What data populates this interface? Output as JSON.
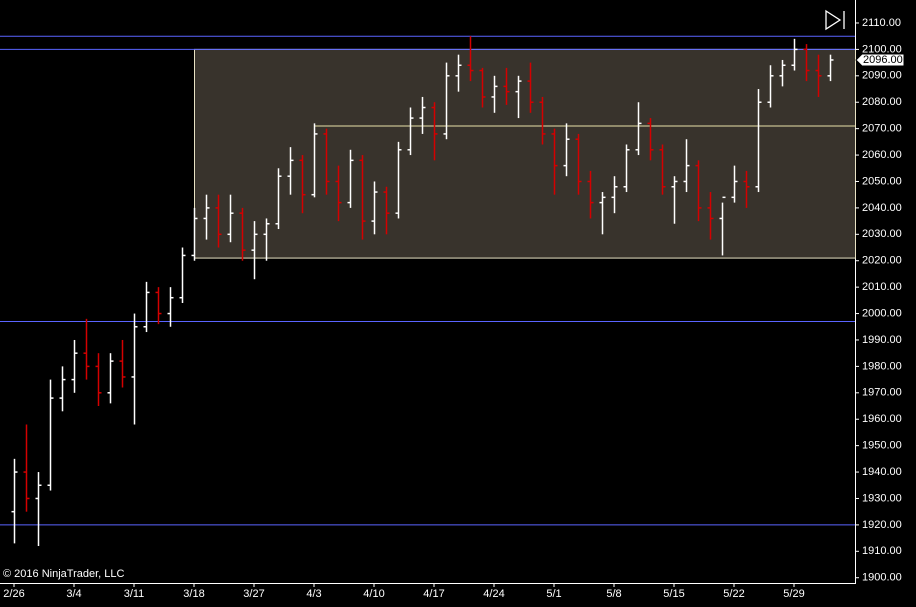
{
  "chart_data": {
    "type": "ohlc",
    "copyright": "© 2016 NinjaTrader, LLC",
    "categories": [
      "2/26",
      null,
      null,
      null,
      null,
      "3/4",
      null,
      null,
      null,
      null,
      "3/11",
      null,
      null,
      null,
      null,
      "3/18",
      null,
      null,
      null,
      null,
      "3/27",
      null,
      null,
      null,
      null,
      "4/3",
      null,
      null,
      null,
      null,
      "4/10",
      null,
      null,
      null,
      null,
      "4/17",
      null,
      null,
      null,
      null,
      "4/24",
      null,
      null,
      null,
      null,
      "5/1",
      null,
      null,
      null,
      null,
      "5/8",
      null,
      null,
      null,
      null,
      "5/15",
      null,
      null,
      null,
      null,
      "5/22",
      null,
      null,
      null,
      null,
      "5/29",
      null,
      null,
      null
    ],
    "ohlc": [
      [
        1925,
        1945,
        1913,
        1940
      ],
      [
        1940,
        1958,
        1925,
        1930
      ],
      [
        1930,
        1940,
        1912,
        1935
      ],
      [
        1935,
        1975,
        1933,
        1968
      ],
      [
        1968,
        1980,
        1963,
        1975
      ],
      [
        1975,
        1990,
        1970,
        1985
      ],
      [
        1985,
        1998,
        1975,
        1980
      ],
      [
        1980,
        1985,
        1965,
        1970
      ],
      [
        1970,
        1985,
        1966,
        1982
      ],
      [
        1982,
        1990,
        1972,
        1976
      ],
      [
        1976,
        2000,
        1958,
        1995
      ],
      [
        1995,
        2012,
        1993,
        2008
      ],
      [
        2008,
        2010,
        1996,
        2000
      ],
      [
        2000,
        2010,
        1995,
        2006
      ],
      [
        2006,
        2025,
        2004,
        2022
      ],
      [
        2022,
        2040,
        2020,
        2036
      ],
      [
        2036,
        2045,
        2028,
        2040
      ],
      [
        2040,
        2045,
        2025,
        2030
      ],
      [
        2030,
        2045,
        2027,
        2038
      ],
      [
        2038,
        2040,
        2020,
        2024
      ],
      [
        2024,
        2035,
        2013,
        2030
      ],
      [
        2030,
        2036,
        2020,
        2034
      ],
      [
        2034,
        2055,
        2032,
        2052
      ],
      [
        2052,
        2063,
        2045,
        2058
      ],
      [
        2058,
        2060,
        2038,
        2045
      ],
      [
        2045,
        2072,
        2044,
        2068
      ],
      [
        2068,
        2070,
        2045,
        2050
      ],
      [
        2050,
        2056,
        2035,
        2042
      ],
      [
        2042,
        2062,
        2040,
        2058
      ],
      [
        2058,
        2060,
        2028,
        2035
      ],
      [
        2035,
        2050,
        2030,
        2046
      ],
      [
        2046,
        2048,
        2030,
        2038
      ],
      [
        2038,
        2065,
        2036,
        2062
      ],
      [
        2062,
        2078,
        2060,
        2074
      ],
      [
        2074,
        2082,
        2068,
        2078
      ],
      [
        2078,
        2080,
        2058,
        2068
      ],
      [
        2068,
        2095,
        2066,
        2090
      ],
      [
        2090,
        2098,
        2084,
        2094
      ],
      [
        2094,
        2105,
        2088,
        2092
      ],
      [
        2092,
        2093,
        2078,
        2082
      ],
      [
        2082,
        2090,
        2076,
        2086
      ],
      [
        2086,
        2093,
        2079,
        2084
      ],
      [
        2084,
        2090,
        2074,
        2088
      ],
      [
        2088,
        2095,
        2076,
        2080
      ],
      [
        2080,
        2082,
        2064,
        2068
      ],
      [
        2068,
        2070,
        2045,
        2056
      ],
      [
        2056,
        2072,
        2052,
        2066
      ],
      [
        2066,
        2068,
        2045,
        2050
      ],
      [
        2050,
        2054,
        2036,
        2042
      ],
      [
        2042,
        2046,
        2030,
        2044
      ],
      [
        2044,
        2052,
        2038,
        2048
      ],
      [
        2048,
        2064,
        2046,
        2062
      ],
      [
        2062,
        2080,
        2060,
        2072
      ],
      [
        2072,
        2074,
        2058,
        2062
      ],
      [
        2062,
        2064,
        2045,
        2048
      ],
      [
        2048,
        2052,
        2034,
        2050
      ],
      [
        2050,
        2066,
        2046,
        2056
      ],
      [
        2056,
        2058,
        2035,
        2040
      ],
      [
        2040,
        2046,
        2028,
        2036
      ],
      [
        2036,
        2042,
        2022,
        2044
      ],
      [
        2044,
        2056,
        2042,
        2050
      ],
      [
        2050,
        2054,
        2040,
        2048
      ],
      [
        2048,
        2085,
        2046,
        2080
      ],
      [
        2080,
        2094,
        2078,
        2090
      ],
      [
        2090,
        2096,
        2086,
        2094
      ],
      [
        2094,
        2104,
        2092,
        2100
      ],
      [
        2100,
        2102,
        2088,
        2092
      ],
      [
        2092,
        2098,
        2082,
        2090
      ],
      [
        2090,
        2098,
        2088,
        2096
      ]
    ],
    "up_color": "#ffffff",
    "down_color": "#d40000",
    "ylim": [
      1898,
      2118.7
    ],
    "yticks": [
      {
        "value": 1900,
        "label": "1900.00"
      },
      {
        "value": 1910,
        "label": "1910.00"
      },
      {
        "value": 1920,
        "label": "1920.00"
      },
      {
        "value": 1930,
        "label": "1930.00"
      },
      {
        "value": 1940,
        "label": "1940.00"
      },
      {
        "value": 1950,
        "label": "1950.00"
      },
      {
        "value": 1960,
        "label": "1960.00"
      },
      {
        "value": 1970,
        "label": "1970.00"
      },
      {
        "value": 1980,
        "label": "1980.00"
      },
      {
        "value": 1990,
        "label": "1990.00"
      },
      {
        "value": 2000,
        "label": "2000.00"
      },
      {
        "value": 2010,
        "label": "2010.00"
      },
      {
        "value": 2020,
        "label": "2020.00"
      },
      {
        "value": 2030,
        "label": "2030.00"
      },
      {
        "value": 2040,
        "label": "2040.00"
      },
      {
        "value": 2050,
        "label": "2050.00"
      },
      {
        "value": 2060,
        "label": "2060.00"
      },
      {
        "value": 2070,
        "label": "2070.00"
      },
      {
        "value": 2080,
        "label": "2080.00"
      },
      {
        "value": 2090,
        "label": "2090.00"
      },
      {
        "value": 2100,
        "label": "2100.00"
      },
      {
        "value": 2110,
        "label": "2110.00"
      }
    ],
    "last_price": {
      "value": 2096,
      "label": "2096.00"
    },
    "hlines": [
      {
        "value": 2105,
        "color": "#5a64ff"
      },
      {
        "value": 2100,
        "color": "#5a64ff"
      },
      {
        "value": 1997,
        "color": "#5a64ff"
      },
      {
        "value": 1920,
        "color": "#5a64ff"
      }
    ],
    "zone": {
      "top": 2100,
      "bottom": 2021,
      "from": "3/18",
      "fill": "#38332c",
      "stroke": "#e8e2c4"
    },
    "ray": {
      "value": 2071,
      "from": "4/3",
      "color": "#e8e2a8"
    }
  }
}
